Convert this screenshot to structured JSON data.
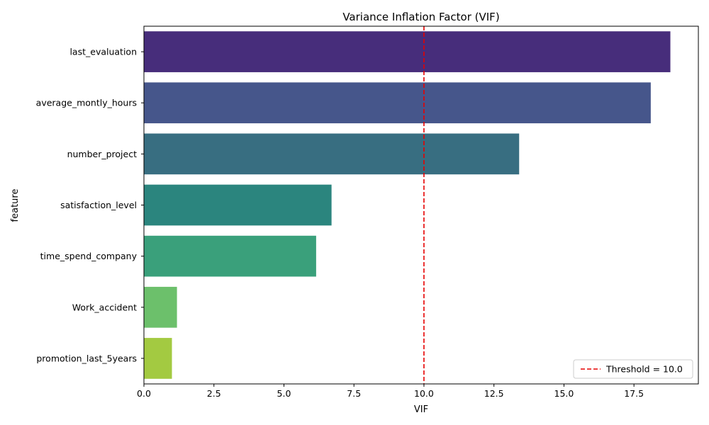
{
  "chart_data": {
    "type": "bar",
    "orientation": "horizontal",
    "title": "Variance Inflation Factor (VIF)",
    "xlabel": "VIF",
    "ylabel": "feature",
    "categories": [
      "last_evaluation",
      "average_montly_hours",
      "number_project",
      "satisfaction_level",
      "time_spend_company",
      "Work_accident",
      "promotion_last_5years"
    ],
    "values": [
      18.8,
      18.1,
      13.4,
      6.7,
      6.15,
      1.18,
      1.0
    ],
    "colors": [
      "#472d7b",
      "#46568b",
      "#386e81",
      "#2b857e",
      "#3aa07b",
      "#6cc06b",
      "#a3ca41"
    ],
    "xlim": [
      0,
      19.8
    ],
    "xticks": [
      0,
      2.5,
      5,
      7.5,
      10,
      12.5,
      15,
      17.5
    ],
    "xtick_labels": [
      "0.0",
      "2.5",
      "5.0",
      "7.5",
      "10.0",
      "12.5",
      "15.0",
      "17.5"
    ],
    "threshold": {
      "value": 10.0,
      "label": "Threshold = 10.0",
      "color": "#e60000",
      "style": "dashed"
    },
    "legend_position": "bottom-right",
    "grid": false
  }
}
